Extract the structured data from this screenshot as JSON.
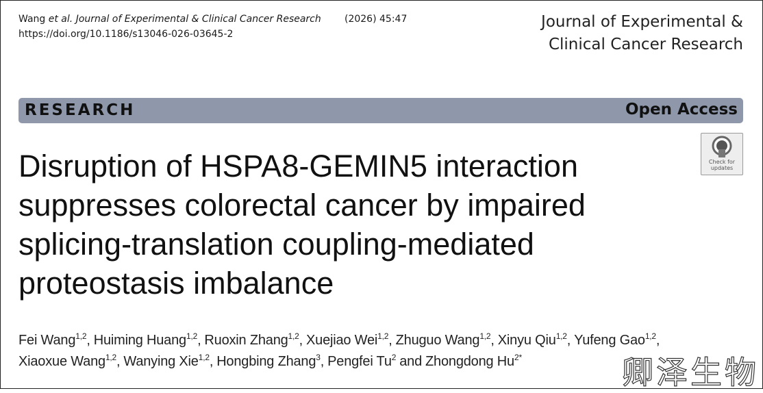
{
  "header": {
    "citation": {
      "author": "Wang",
      "etal": "et al.",
      "journal": "Journal of Experimental & Clinical Cancer Research",
      "year_volume": "(2026) 45:47"
    },
    "doi": "https://doi.org/10.1186/s13046-026-03645-2",
    "journal_logo": [
      "Journal of Experimental &",
      "Clinical Cancer Research"
    ]
  },
  "banner": {
    "type": "RESEARCH",
    "access": "Open Access"
  },
  "check_badge": [
    "Check for",
    "updates"
  ],
  "title": [
    "Disruption of HSPA8-GEMIN5 interaction",
    "suppresses colorectal cancer by impaired",
    "splicing-translation coupling-mediated",
    "proteostasis imbalance"
  ],
  "author_lines": [
    [
      {
        "name": "Fei Wang",
        "aff": "1,2",
        "after": ","
      },
      {
        "name": "Huiming Huang",
        "aff": "1,2",
        "after": ","
      },
      {
        "name": "Ruoxin Zhang",
        "aff": "1,2",
        "after": ","
      },
      {
        "name": "Xuejiao Wei",
        "aff": "1,2",
        "after": ","
      },
      {
        "name": "Zhuguo Wang",
        "aff": "1,2",
        "after": ","
      },
      {
        "name": "Xinyu Qiu",
        "aff": "1,2",
        "after": ","
      },
      {
        "name": "Yufeng Gao",
        "aff": "1,2",
        "after": ","
      }
    ],
    [
      {
        "name": "Xiaoxue Wang",
        "aff": "1,2",
        "after": ","
      },
      {
        "name": "Wanying Xie",
        "aff": "1,2",
        "after": ","
      },
      {
        "name": "Hongbing Zhang",
        "aff": "3",
        "after": ","
      },
      {
        "name": "Pengfei Tu",
        "aff": "2",
        "after": "and"
      },
      {
        "name": "Zhongdong Hu",
        "aff": "2*",
        "after": ""
      }
    ]
  ],
  "watermark": "卿泽生物"
}
